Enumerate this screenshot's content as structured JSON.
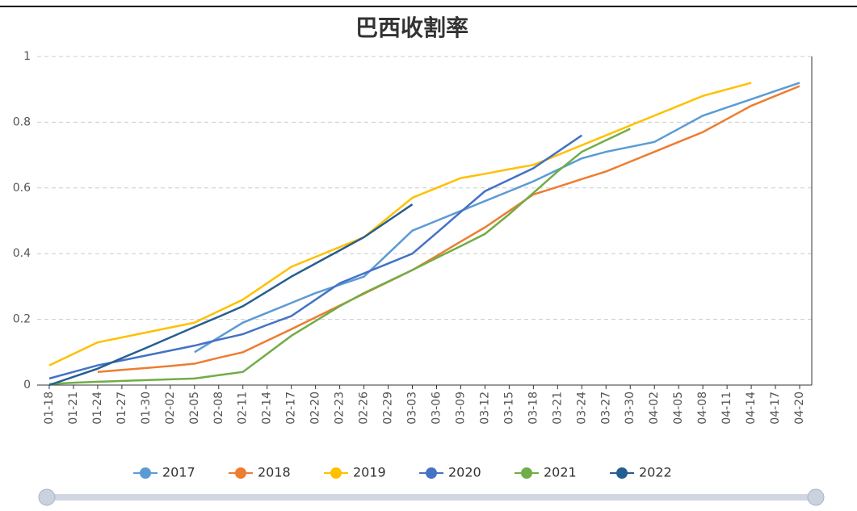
{
  "chart_data": {
    "type": "line",
    "title": "巴西收割率",
    "categories": [
      "01-18",
      "01-21",
      "01-24",
      "01-27",
      "01-30",
      "02-02",
      "02-05",
      "02-08",
      "02-11",
      "02-14",
      "02-17",
      "02-20",
      "02-23",
      "02-26",
      "02-29",
      "03-03",
      "03-06",
      "03-09",
      "03-12",
      "03-15",
      "03-18",
      "03-21",
      "03-24",
      "03-27",
      "03-30",
      "04-02",
      "04-05",
      "04-08",
      "04-11",
      "04-14",
      "04-17",
      "04-20"
    ],
    "ylim": [
      0,
      1
    ],
    "yticks": [
      0,
      0.2,
      0.4,
      0.6,
      0.8,
      1
    ],
    "grid": true,
    "legend": "bottom",
    "series": [
      {
        "name": "2017",
        "color": "#5b9bd5",
        "values": [
          null,
          null,
          null,
          null,
          null,
          null,
          0.1,
          0.145,
          0.19,
          0.22,
          0.25,
          0.28,
          0.305,
          0.33,
          0.4,
          0.47,
          0.5,
          0.53,
          0.56,
          0.59,
          0.62,
          0.655,
          0.69,
          0.71,
          0.725,
          0.74,
          0.78,
          0.82,
          0.845,
          0.87,
          0.895,
          0.92
        ]
      },
      {
        "name": "2018",
        "color": "#ed7d31",
        "values": [
          null,
          null,
          0.04,
          0.046,
          0.052,
          0.058,
          0.065,
          0.083,
          0.1,
          0.135,
          0.17,
          0.206,
          0.242,
          0.278,
          0.314,
          0.35,
          0.393,
          0.437,
          0.48,
          0.53,
          0.58,
          0.603,
          0.627,
          0.65,
          0.68,
          0.71,
          0.74,
          0.77,
          0.81,
          0.85,
          0.88,
          0.91
        ]
      },
      {
        "name": "2019",
        "color": "#ffc000",
        "values": [
          0.06,
          0.095,
          0.13,
          0.145,
          0.16,
          0.175,
          0.19,
          0.225,
          0.26,
          0.31,
          0.36,
          0.39,
          0.42,
          0.45,
          0.51,
          0.57,
          0.6,
          0.63,
          0.643,
          0.657,
          0.67,
          0.7,
          0.73,
          0.76,
          0.79,
          0.82,
          0.85,
          0.88,
          0.9,
          0.92,
          null,
          null
        ]
      },
      {
        "name": "2020",
        "color": "#4472c4",
        "values": [
          0.02,
          0.04,
          0.06,
          0.075,
          0.09,
          0.105,
          0.12,
          0.138,
          0.155,
          0.183,
          0.21,
          0.26,
          0.31,
          0.34,
          0.37,
          0.4,
          0.463,
          0.527,
          0.59,
          0.625,
          0.66,
          0.71,
          0.76,
          null,
          null,
          null,
          null,
          null,
          null,
          null,
          null,
          null
        ]
      },
      {
        "name": "2021",
        "color": "#70ad47",
        "values": [
          0.003,
          0.007,
          0.01,
          0.0125,
          0.015,
          0.0175,
          0.02,
          0.03,
          0.04,
          0.095,
          0.15,
          0.195,
          0.24,
          0.28,
          0.315,
          0.35,
          0.387,
          0.423,
          0.46,
          0.52,
          0.585,
          0.65,
          0.71,
          0.745,
          0.78,
          null,
          null,
          null,
          null,
          null,
          null,
          null
        ]
      },
      {
        "name": "2022",
        "color": "#255e91",
        "values": [
          0,
          0.025,
          0.05,
          0.082,
          0.113,
          0.145,
          0.177,
          0.208,
          0.24,
          0.285,
          0.33,
          0.37,
          0.41,
          0.45,
          0.5,
          0.55,
          null,
          null,
          null,
          null,
          null,
          null,
          null,
          null,
          null,
          null,
          null,
          null,
          null,
          null,
          null,
          null
        ]
      }
    ]
  }
}
